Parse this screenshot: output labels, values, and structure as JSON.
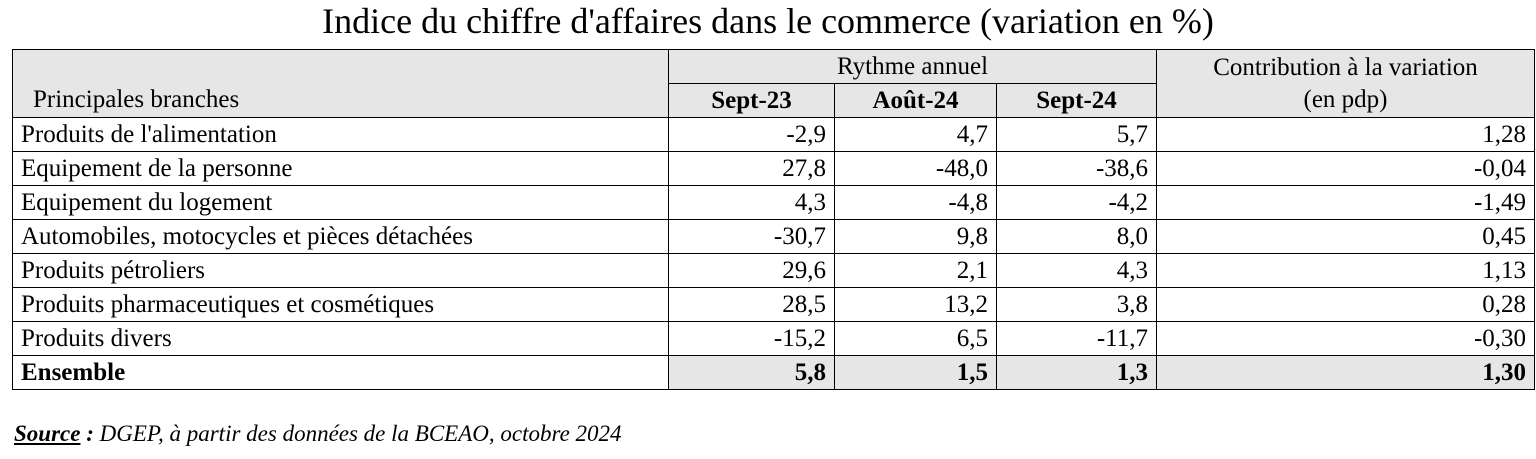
{
  "title": "Indice du chiffre d'affaires dans le commerce (variation en %)",
  "table": {
    "branch_header": "Principales branches",
    "group_header": "Rythme annuel",
    "contrib_header_line1": "Contribution à la variation",
    "contrib_header_line2": "(en pdp)",
    "periods": [
      "Sept-23",
      "Août-24",
      "Sept-24"
    ],
    "rows": [
      {
        "label": "Produits de l'alimentation",
        "v1": "-2,9",
        "v2": "4,7",
        "v3": "5,7",
        "contrib": "1,28"
      },
      {
        "label": "Equipement de la personne",
        "v1": "27,8",
        "v2": "-48,0",
        "v3": "-38,6",
        "contrib": "-0,04"
      },
      {
        "label": "Equipement du logement",
        "v1": "4,3",
        "v2": "-4,8",
        "v3": "-4,2",
        "contrib": "-1,49"
      },
      {
        "label": "Automobiles, motocycles et pièces détachées",
        "v1": "-30,7",
        "v2": "9,8",
        "v3": "8,0",
        "contrib": "0,45"
      },
      {
        "label": "Produits pétroliers",
        "v1": "29,6",
        "v2": "2,1",
        "v3": "4,3",
        "contrib": "1,13"
      },
      {
        "label": "Produits pharmaceutiques et cosmétiques",
        "v1": "28,5",
        "v2": "13,2",
        "v3": "3,8",
        "contrib": "0,28"
      },
      {
        "label": "Produits divers",
        "v1": "-15,2",
        "v2": "6,5",
        "v3": "-11,7",
        "contrib": "-0,30"
      }
    ],
    "total": {
      "label": "Ensemble",
      "v1": "5,8",
      "v2": "1,5",
      "v3": "1,3",
      "contrib": "1,30"
    }
  },
  "source": {
    "label": "Source",
    "separator": " :",
    "text": " DGEP, à partir des données de la BCEAO, octobre 2024"
  }
}
